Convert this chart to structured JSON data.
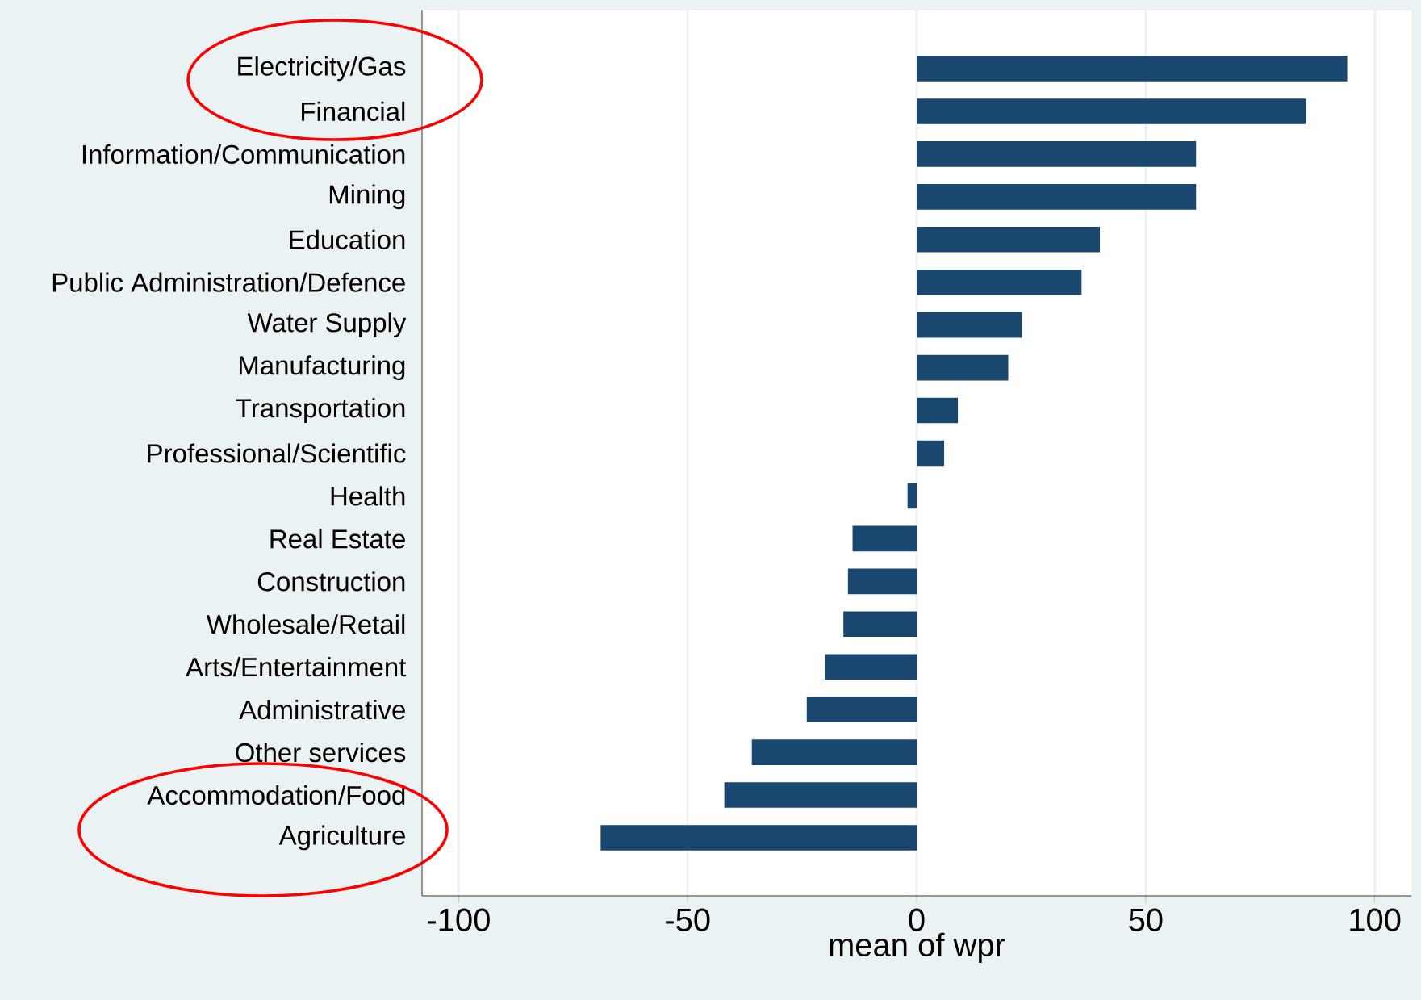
{
  "chart_data": {
    "type": "bar",
    "orientation": "horizontal",
    "xlabel": "mean of wpr",
    "categories": [
      "Electricity/Gas",
      "Financial",
      "Information/Communication",
      "Mining",
      "Education",
      "Public Administration/Defence",
      "Water Supply",
      "Manufacturing",
      "Transportation",
      "Professional/Scientific",
      "Health",
      "Real Estate",
      "Construction",
      "Wholesale/Retail",
      "Arts/Entertainment",
      "Administrative",
      "Other services",
      "Accommodation/Food",
      "Agriculture"
    ],
    "values": [
      94,
      85,
      61,
      61,
      40,
      36,
      23,
      20,
      9,
      6,
      -2,
      -14,
      -15,
      -16,
      -20,
      -24,
      -36,
      -42,
      -69
    ],
    "color": "#1a476f",
    "xlim": [
      -108,
      108
    ],
    "xticks": [
      -100,
      -50,
      0,
      50,
      100
    ],
    "grid": "x"
  }
}
